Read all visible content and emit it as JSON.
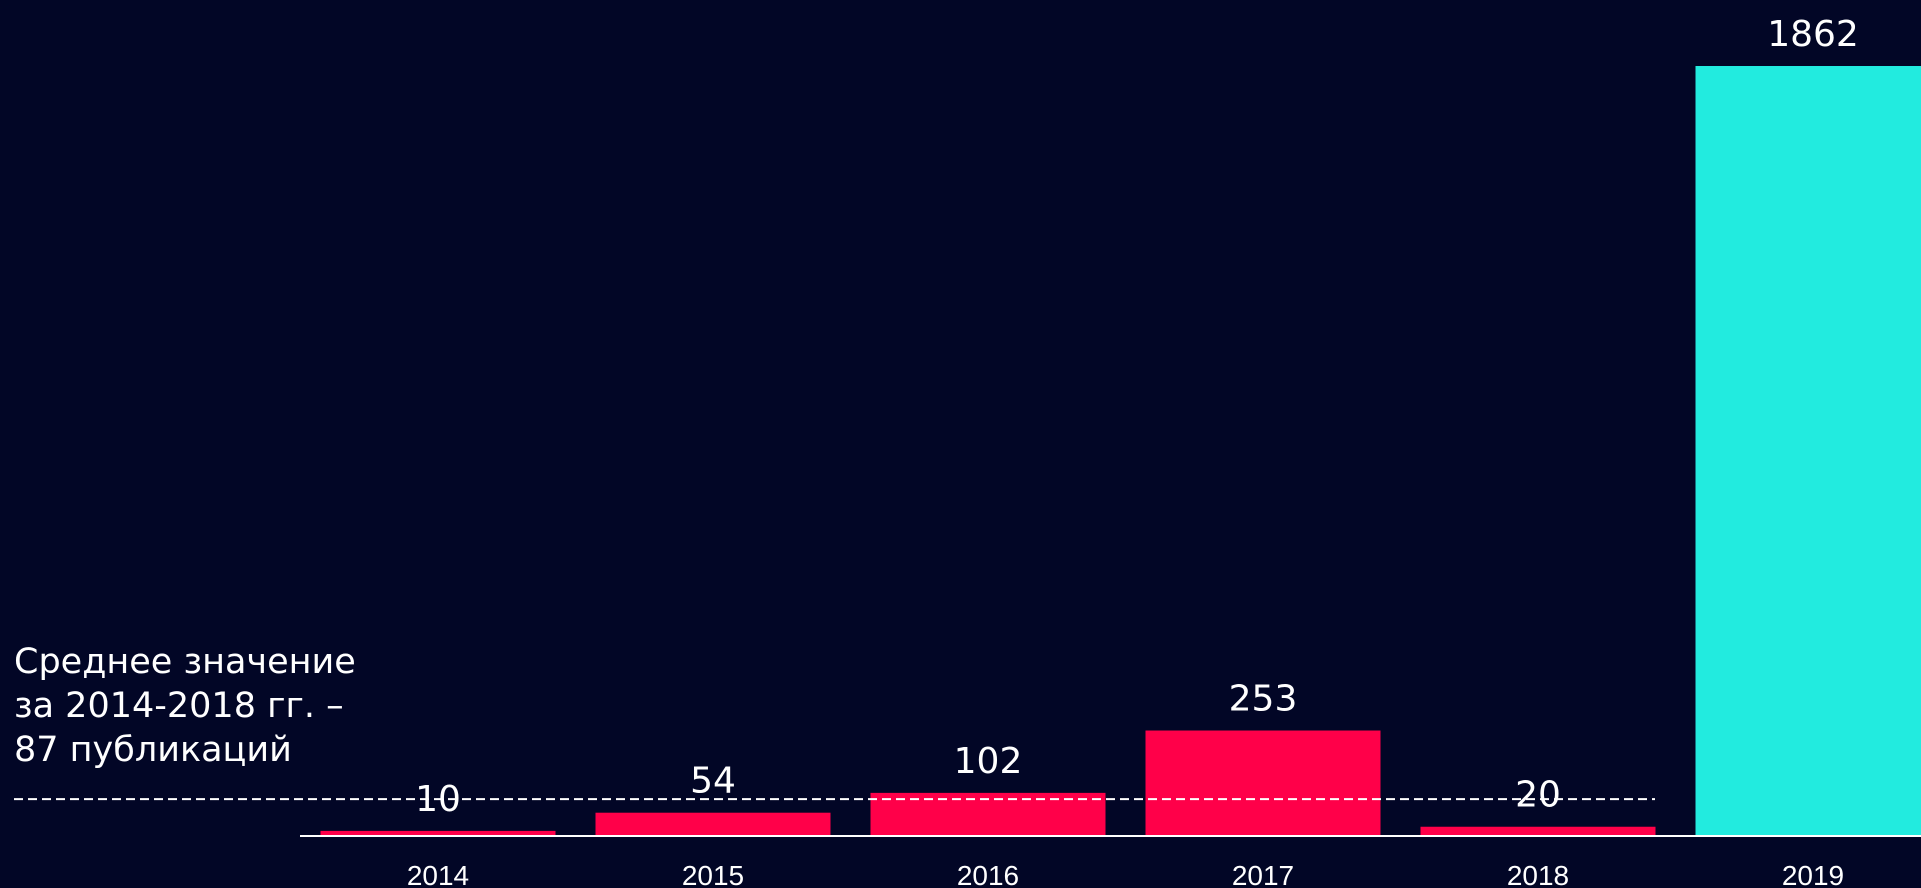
{
  "chart_data": {
    "type": "bar",
    "title": "",
    "xlabel": "",
    "ylabel": "",
    "categories": [
      "2014",
      "2015",
      "2016",
      "2017",
      "2018",
      "2019"
    ],
    "values": [
      10,
      54,
      102,
      253,
      20,
      1862
    ],
    "value_labels": [
      "10",
      "54",
      "102",
      "253",
      "20",
      "1862"
    ],
    "ylim": [
      0,
      1862
    ],
    "grid": false,
    "reference_line": {
      "value": 87,
      "style": "dashed"
    },
    "annotation_lines": [
      "Среднее значение",
      "за 2014-2018 гг. –",
      "87 публикаций"
    ]
  },
  "colors": {
    "background": "#020626",
    "bar_default": "#ff0049",
    "bar_highlight": "#22ebdf",
    "text": "#ffffff",
    "axis": "#ffffff"
  }
}
